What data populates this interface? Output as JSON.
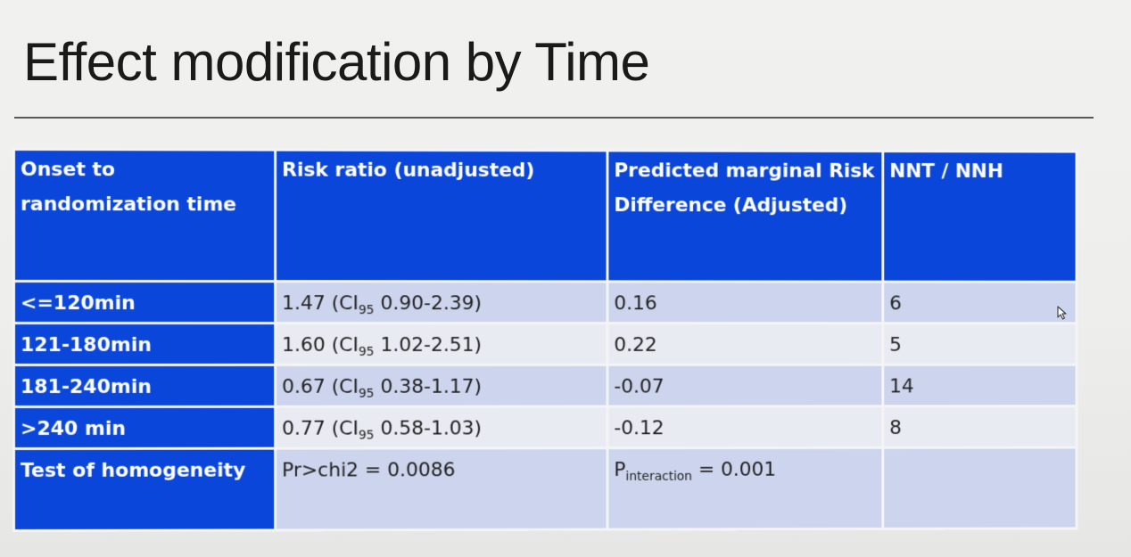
{
  "title": "Effect modification by Time",
  "table": {
    "headers": [
      "Onset to\nrandomization time",
      "Risk ratio (unadjusted)",
      "Predicted marginal Risk\nDifference (Adjusted)",
      "NNT / NNH"
    ],
    "rows": [
      {
        "label": "<=120min",
        "rr_value": "1.47",
        "ci_prefix": "(CI",
        "ci_sub": "95",
        "ci_range": " 0.90-2.39)",
        "rd": "0.16",
        "nnt": "6"
      },
      {
        "label": "121-180min",
        "rr_value": "1.60",
        "ci_prefix": "(CI",
        "ci_sub": "95",
        "ci_range": " 1.02-2.51)",
        "rd": "0.22",
        "nnt": "5"
      },
      {
        "label": "181-240min",
        "rr_value": "0.67",
        "ci_prefix": "(CI",
        "ci_sub": "95",
        "ci_range": " 0.38-1.17)",
        "rd": "-0.07",
        "nnt": "14"
      },
      {
        "label": ">240 min",
        "rr_value": "0.77",
        "ci_prefix": "(CI",
        "ci_sub": "95",
        "ci_range": " 0.58-1.03)",
        "rd": "-0.12",
        "nnt": "8"
      }
    ],
    "homogeneity": {
      "label": "Test of homogeneity",
      "chi2": "Pr>chi2 = 0.0086",
      "p_main": "P",
      "p_sub": "interaction",
      "p_value": " = 0.001",
      "nnt": ""
    }
  },
  "colors": {
    "header_blue": "#0a46d9",
    "band_row": "#cdd5ee",
    "plain_row": "#e9ebf3"
  },
  "icons": {
    "cursor": "mouse-pointer-icon"
  }
}
